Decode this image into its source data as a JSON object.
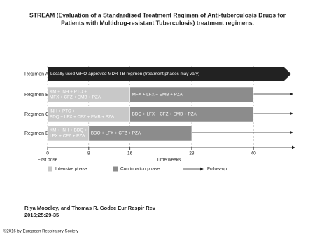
{
  "chart_data": {
    "type": "timeline",
    "title": [
      "STREAM (Evaluation of a Standardised Treatment Regimen of Anti-tuberculosis Drugs for",
      "Patients with Multidrug-resistant Tuberculosis) treatment regimens."
    ],
    "rows": [
      {
        "name": "Regimen A",
        "text": [
          "Locally used WHO-approved MDR-TB regimen (treatment phases may vary)"
        ]
      },
      {
        "name": "Regimen B",
        "intensive": [
          0,
          16
        ],
        "intensive_text": [
          "KM + INH + PTO +",
          "MFX + CFZ + EMB + PZA"
        ],
        "continuation": [
          16,
          40
        ],
        "continuation_text": [
          "MFX + LFX + EMB + PZA"
        ]
      },
      {
        "name": "Regimen C",
        "intensive": [
          0,
          16
        ],
        "intensive_text": [
          "INH + PTO +",
          "BDQ + LFX + CFZ + EMB + PZA"
        ],
        "continuation": [
          16,
          40
        ],
        "continuation_text": [
          "BDQ + LFX + CFZ + EMB + PZA"
        ]
      },
      {
        "name": "Regimen D",
        "intensive": [
          0,
          8
        ],
        "intensive_text": [
          "KM + INH + BDQ +",
          "LFX + CFZ + PZA"
        ],
        "continuation": [
          8,
          28
        ],
        "continuation_text": [
          "BDQ + LFX + CFZ + PZA"
        ]
      }
    ],
    "xlim": [
      0,
      48
    ],
    "xticks": [
      0,
      8,
      16,
      28,
      40
    ],
    "x_start_label": "First dose",
    "xlabel": "Time weeks",
    "colors": {
      "intensive": "#c8c8c8",
      "continuation": "#8c8c8c",
      "fixed": "#222222"
    },
    "legend": [
      "Intensive phase",
      "Continuation phase",
      "Follow-up"
    ],
    "citation": [
      "Riya Moodley, and Thomas R. Godec Eur Respir Rev",
      "2016;25:29-35"
    ],
    "copyright": "©2016 by European Respiratory Society"
  }
}
